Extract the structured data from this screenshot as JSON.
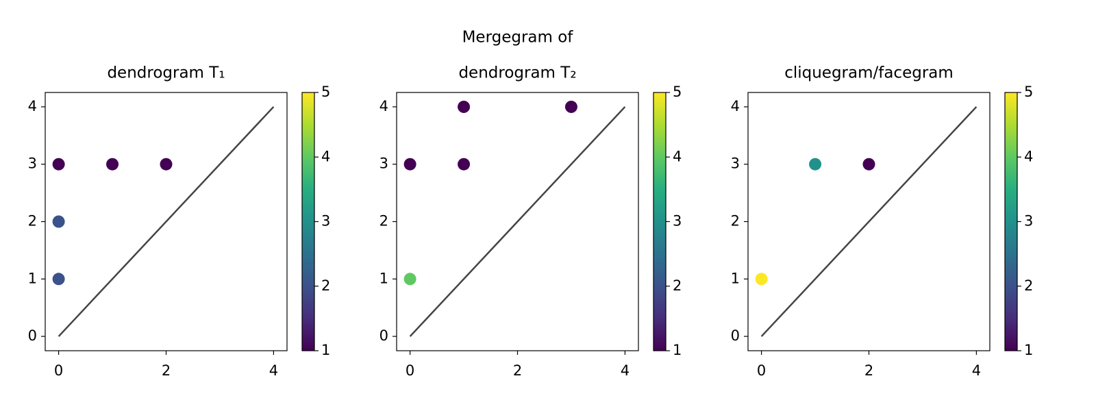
{
  "chart_data": [
    {
      "type": "scatter",
      "title": [
        "dendrogram T₁"
      ],
      "x": [
        0,
        1,
        2,
        0,
        0
      ],
      "y": [
        3,
        3,
        3,
        2,
        1
      ],
      "c": [
        1,
        1,
        1,
        2,
        2
      ],
      "xlim": [
        -0.25,
        4.25
      ],
      "ylim": [
        -0.25,
        4.25
      ],
      "xticks": [
        0,
        2,
        4
      ],
      "yticks": [
        0,
        1,
        2,
        3,
        4
      ],
      "clim": [
        1,
        5
      ],
      "cticks": [
        1,
        2,
        3,
        4,
        5
      ],
      "colormap": "viridis",
      "diagonal": {
        "x": [
          0,
          4
        ],
        "y": [
          0,
          4
        ],
        "color": "#444444"
      }
    },
    {
      "type": "scatter",
      "title": [
        "Mergegram of",
        "dendrogram T₂"
      ],
      "x": [
        0,
        1,
        1,
        3,
        0
      ],
      "y": [
        3,
        3,
        4,
        4,
        1
      ],
      "c": [
        1,
        1,
        1,
        1,
        4
      ],
      "xlim": [
        -0.25,
        4.25
      ],
      "ylim": [
        -0.25,
        4.25
      ],
      "xticks": [
        0,
        2,
        4
      ],
      "yticks": [
        0,
        1,
        2,
        3,
        4
      ],
      "clim": [
        1,
        5
      ],
      "cticks": [
        1,
        2,
        3,
        4,
        5
      ],
      "colormap": "viridis",
      "diagonal": {
        "x": [
          0,
          4
        ],
        "y": [
          0,
          4
        ],
        "color": "#444444"
      }
    },
    {
      "type": "scatter",
      "title": [
        "cliquegram/facegram"
      ],
      "x": [
        1,
        2,
        0
      ],
      "y": [
        3,
        3,
        1
      ],
      "c": [
        3,
        1,
        5
      ],
      "xlim": [
        -0.25,
        4.25
      ],
      "ylim": [
        -0.25,
        4.25
      ],
      "xticks": [
        0,
        2,
        4
      ],
      "yticks": [
        0,
        1,
        2,
        3,
        4
      ],
      "clim": [
        1,
        5
      ],
      "cticks": [
        1,
        2,
        3,
        4,
        5
      ],
      "colormap": "viridis",
      "diagonal": {
        "x": [
          0,
          4
        ],
        "y": [
          0,
          4
        ],
        "color": "#444444"
      }
    }
  ]
}
